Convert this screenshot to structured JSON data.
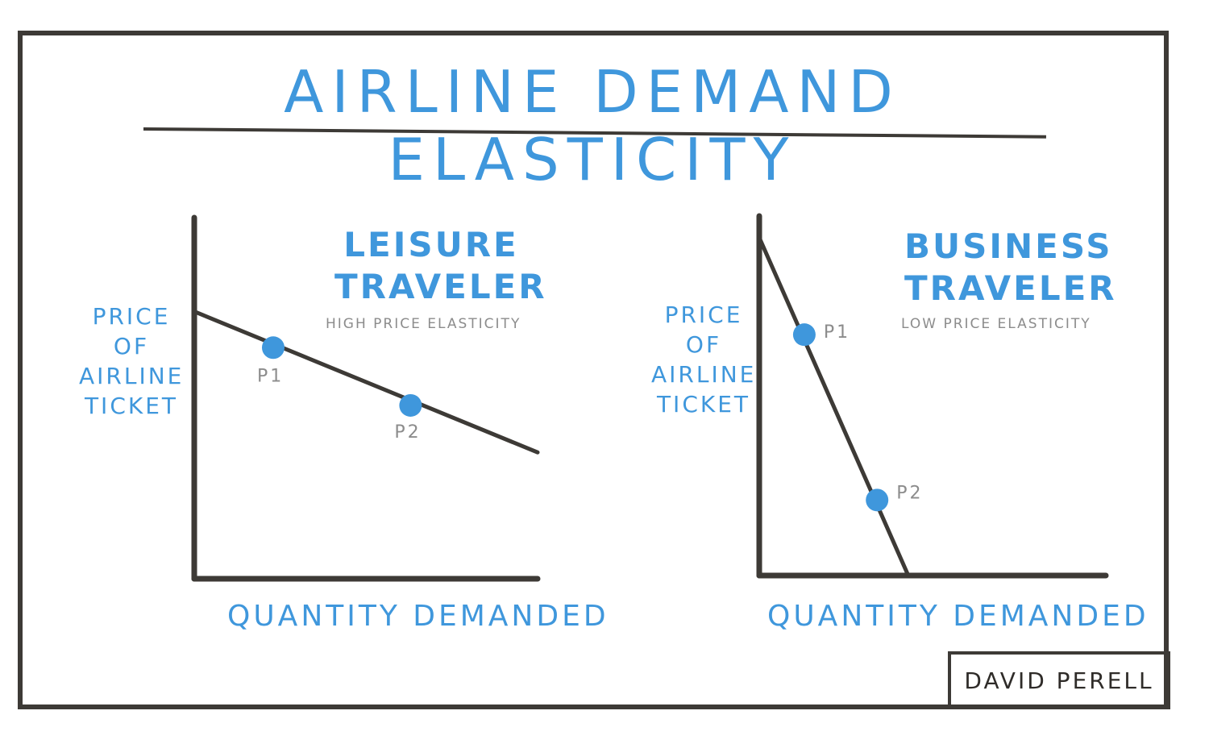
{
  "title": "AIRLINE DEMAND ELASTICITY",
  "author": "DAVID PERELL",
  "colors": {
    "accent": "#3f97dc",
    "ink": "#3d3a36",
    "muted": "#8c8c8c"
  },
  "chart_data": [
    {
      "type": "line",
      "title_line1": "LEISURE",
      "title_line2": "TRAVELER",
      "subtitle": "HIGH PRICE ELASTICITY",
      "ylabel": [
        "PRICE",
        "OF",
        "AIRLINE",
        "TICKET"
      ],
      "xlabel": "QUANTITY DEMANDED",
      "xlim": [
        0,
        100
      ],
      "ylim": [
        0,
        100
      ],
      "series": [
        {
          "x": [
            0,
            100
          ],
          "y": [
            74,
            35
          ]
        }
      ],
      "points": [
        {
          "label": "P1",
          "x": 23,
          "y": 64
        },
        {
          "label": "P2",
          "x": 63,
          "y": 48
        }
      ]
    },
    {
      "type": "line",
      "title_line1": "BUSINESS",
      "title_line2": "TRAVELER",
      "subtitle": "LOW PRICE ELASTICITY",
      "ylabel": [
        "PRICE",
        "OF",
        "AIRLINE",
        "TICKET"
      ],
      "xlabel": "QUANTITY DEMANDED",
      "xlim": [
        0,
        100
      ],
      "ylim": [
        0,
        100
      ],
      "series": [
        {
          "x": [
            0,
            43
          ],
          "y": [
            94,
            0
          ]
        }
      ],
      "points": [
        {
          "label": "P1",
          "x": 13,
          "y": 67
        },
        {
          "label": "P2",
          "x": 34,
          "y": 21
        }
      ]
    }
  ]
}
